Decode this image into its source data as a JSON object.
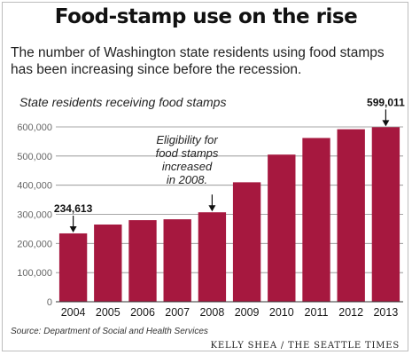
{
  "header": {
    "title": "Food-stamp use on the rise",
    "subtitle_lines": [
      "The number of Washington state residents using food stamps",
      "has been increasing since before the recession."
    ]
  },
  "chart_data": {
    "type": "bar",
    "title": "State residents receiving food stamps",
    "categories": [
      "2004",
      "2005",
      "2006",
      "2007",
      "2008",
      "2009",
      "2010",
      "2011",
      "2012",
      "2013"
    ],
    "values": [
      234613,
      265000,
      280000,
      283000,
      307000,
      410000,
      505000,
      562000,
      592000,
      599011
    ],
    "ylim": [
      0,
      600000
    ],
    "yticks": [
      0,
      100000,
      200000,
      300000,
      400000,
      500000,
      600000
    ],
    "ytick_labels": [
      "0",
      "100,000",
      "200,000",
      "300,000",
      "400,000",
      "500,000",
      "600,000"
    ],
    "grid": true,
    "bar_color": "#a6183f",
    "data_labels": [
      {
        "category": "2004",
        "text": "234,613"
      },
      {
        "category": "2013",
        "text": "599,011"
      }
    ],
    "annotations": [
      {
        "category": "2008",
        "lines": [
          "Eligibility for",
          "food stamps",
          "increased",
          "in 2008."
        ]
      }
    ]
  },
  "footer": {
    "source": "Source: Department of Social and Health Services",
    "credit": "KELLY SHEA / THE SEATTLE TIMES"
  }
}
